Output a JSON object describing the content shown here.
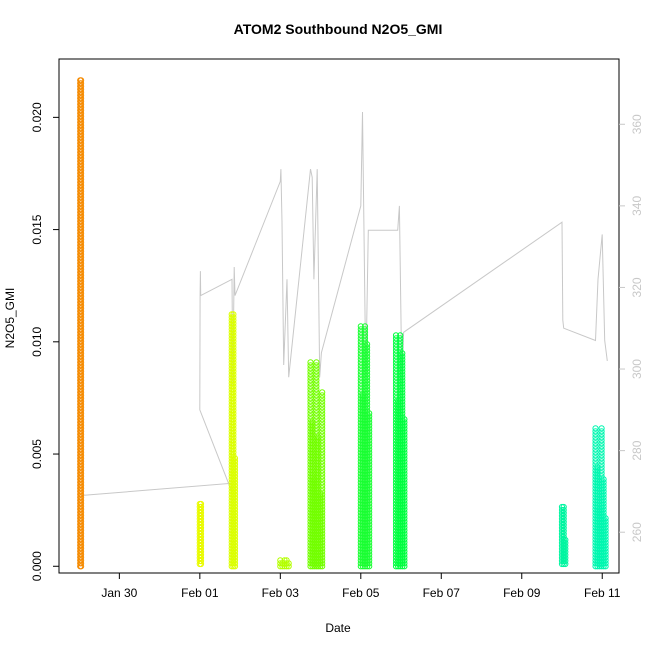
{
  "chart_data": {
    "type": "scatter",
    "title": "ATOM2 Southbound N2O5_GMI",
    "xlabel": "Date",
    "ylabel": "N2O5_GMI",
    "xlim": [
      "2017-01-28T12:00",
      "2017-02-11T10:00"
    ],
    "ylim": [
      -0.0003,
      0.0226
    ],
    "y2lim": [
      250,
      376
    ],
    "x_ticks": [
      "2017-01-30",
      "2017-02-01",
      "2017-02-03",
      "2017-02-05",
      "2017-02-07",
      "2017-02-09",
      "2017-02-11"
    ],
    "x_tick_labels": [
      "Jan 30",
      "Feb 01",
      "Feb 03",
      "Feb 05",
      "Feb 07",
      "Feb 09",
      "Feb 11"
    ],
    "y_ticks": [
      0.0,
      0.005,
      0.01,
      0.015,
      0.02
    ],
    "y_tick_labels": [
      "0.000",
      "0.005",
      "0.010",
      "0.015",
      "0.020"
    ],
    "y2_ticks": [
      260,
      280,
      300,
      320,
      340,
      360
    ],
    "y2_tick_labels": [
      "260",
      "280",
      "300",
      "320",
      "340",
      "360"
    ],
    "grid": false,
    "legend": "none",
    "secondary_color": "#c8c8c8",
    "series": [
      {
        "flight": 1,
        "color": "#f58a00",
        "x": [
          "2017-01-29T00:40",
          "2017-01-29T01:10"
        ],
        "y": [
          0.0,
          0.0217
        ]
      },
      {
        "flight": 2,
        "color": "#e9fb00",
        "x": [
          "2017-02-01T00:00",
          "2017-02-01T00:40"
        ],
        "y": [
          0.0001,
          0.0028
        ]
      },
      {
        "flight": 3,
        "color": "#dbff00",
        "x": [
          "2017-02-01T19:00",
          "2017-02-01T21:00"
        ],
        "y": [
          0.0,
          0.0113
        ]
      },
      {
        "flight": 4,
        "color": "#b4ff00",
        "x": [
          "2017-02-03T00:00",
          "2017-02-03T05:00"
        ],
        "y": [
          0.0,
          0.0003
        ]
      },
      {
        "flight": 5,
        "color": "#73ff00",
        "x": [
          "2017-02-03T18:00",
          "2017-02-04T01:00"
        ],
        "y": [
          0.0,
          0.0091
        ]
      },
      {
        "flight": 6,
        "color": "#1aff33",
        "x": [
          "2017-02-05T00:00",
          "2017-02-05T05:00"
        ],
        "y": [
          0.0,
          0.0107
        ]
      },
      {
        "flight": 7,
        "color": "#00ff40",
        "x": [
          "2017-02-05T21:00",
          "2017-02-06T02:00"
        ],
        "y": [
          0.0,
          0.0103
        ]
      },
      {
        "flight": 8,
        "color": "#00f5a0",
        "x": [
          "2017-02-10T00:00",
          "2017-02-10T02:00"
        ],
        "y": [
          0.0001,
          0.0027
        ]
      },
      {
        "flight": 9,
        "color": "#00f7b0",
        "x": [
          "2017-02-10T20:00",
          "2017-02-11T02:00"
        ],
        "y": [
          0.0,
          0.0062
        ]
      }
    ],
    "secondary_series": {
      "color": "#c8c8c8",
      "x": [
        "2017-01-29T01:10",
        "2017-02-01T19:00",
        "2017-02-01T19:00",
        "2017-02-01T00:00",
        "2017-02-01T00:10",
        "2017-02-01T00:20",
        "2017-02-01T00:30",
        "2017-02-01T19:10",
        "2017-02-01T19:40",
        "2017-02-01T20:30",
        "2017-02-01T21:00",
        "2017-02-03T00:00",
        "2017-02-03T00:20",
        "2017-02-03T01:00",
        "2017-02-03T02:00",
        "2017-02-03T04:00",
        "2017-02-03T05:00",
        "2017-02-03T18:00",
        "2017-02-03T19:00",
        "2017-02-03T20:00",
        "2017-02-03T22:00",
        "2017-02-03T23:30",
        "2017-02-04T00:30",
        "2017-02-05T00:00",
        "2017-02-05T01:00",
        "2017-02-05T03:00",
        "2017-02-05T04:30",
        "2017-02-05T22:00",
        "2017-02-05T23:00",
        "2017-02-06T00:30",
        "2017-02-06T01:30",
        "2017-02-10T00:00",
        "2017-02-10T00:30",
        "2017-02-10T01:00",
        "2017-02-10T20:00",
        "2017-02-10T21:30",
        "2017-02-11T00:00",
        "2017-02-11T01:30",
        "2017-02-11T03:00"
      ],
      "y": [
        269,
        272,
        270,
        290,
        318,
        324,
        318,
        322,
        296,
        325,
        318,
        346,
        349,
        336,
        301,
        322,
        298,
        349,
        347,
        322,
        349,
        298,
        304,
        340,
        363,
        298,
        334,
        334,
        340,
        296,
        309,
        336,
        312,
        310,
        307,
        322,
        333,
        307,
        302
      ]
    }
  }
}
